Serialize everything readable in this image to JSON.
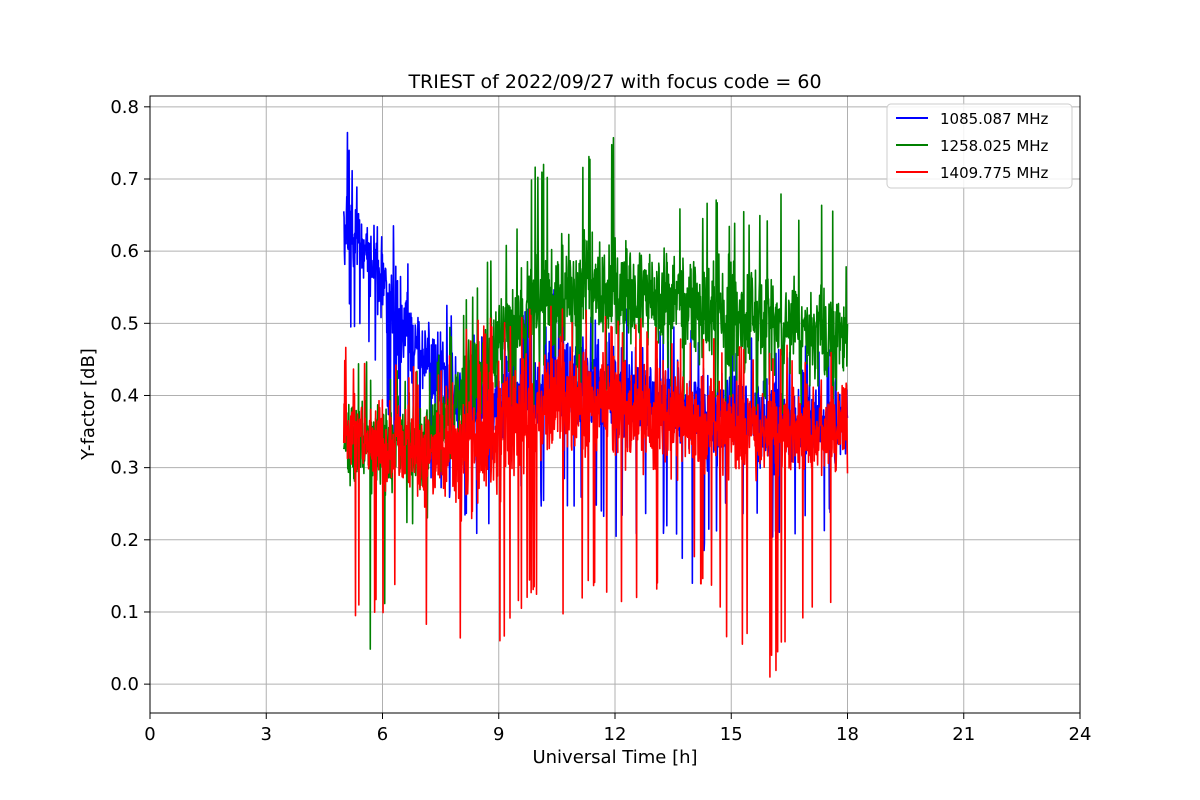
{
  "chart_data": {
    "type": "line",
    "title": "TRIEST of 2022/09/27 with focus code = 60",
    "xlabel": "Universal Time [h]",
    "ylabel": "Y-factor [dB]",
    "xlim": [
      0,
      24
    ],
    "ylim": [
      -0.04,
      0.815
    ],
    "xticks": [
      0,
      3,
      6,
      9,
      12,
      15,
      18,
      21,
      24
    ],
    "yticks": [
      0.0,
      0.1,
      0.2,
      0.3,
      0.4,
      0.5,
      0.6,
      0.7,
      0.8
    ],
    "xtick_labels": [
      "0",
      "3",
      "6",
      "9",
      "12",
      "15",
      "18",
      "21",
      "24"
    ],
    "ytick_labels": [
      "0.0",
      "0.1",
      "0.2",
      "0.3",
      "0.4",
      "0.5",
      "0.6",
      "0.7",
      "0.8"
    ],
    "grid": true,
    "legend_position": "top-right",
    "series": [
      {
        "name": "1085.087 MHz",
        "color": "#0000ff",
        "x": [
          5.0,
          5.1,
          5.3,
          5.6,
          6.0,
          6.5,
          7.0,
          7.5,
          8.0,
          8.5,
          9.0,
          9.5,
          10.0,
          10.5,
          11.0,
          11.5,
          12.0,
          12.5,
          13.0,
          13.5,
          14.0,
          14.5,
          15.0,
          15.5,
          16.0,
          16.5,
          17.0,
          17.5,
          18.0
        ],
        "y_mean": [
          0.62,
          0.64,
          0.62,
          0.6,
          0.56,
          0.5,
          0.46,
          0.43,
          0.4,
          0.38,
          0.38,
          0.4,
          0.41,
          0.42,
          0.42,
          0.41,
          0.41,
          0.4,
          0.39,
          0.39,
          0.38,
          0.37,
          0.37,
          0.37,
          0.36,
          0.36,
          0.36,
          0.36,
          0.36
        ],
        "y_max": [
          0.72,
          0.77,
          0.72,
          0.7,
          0.66,
          0.64,
          0.55,
          0.55,
          0.5,
          0.5,
          0.5,
          0.52,
          0.53,
          0.55,
          0.55,
          0.53,
          0.53,
          0.52,
          0.51,
          0.5,
          0.5,
          0.49,
          0.48,
          0.48,
          0.49,
          0.47,
          0.48,
          0.47,
          0.47
        ],
        "y_min": [
          0.47,
          0.5,
          0.48,
          0.45,
          0.38,
          0.3,
          0.28,
          0.25,
          0.22,
          0.2,
          0.22,
          0.24,
          0.24,
          0.25,
          0.24,
          0.22,
          0.2,
          0.2,
          0.2,
          0.2,
          0.11,
          0.19,
          0.22,
          0.2,
          0.2,
          0.2,
          0.21,
          0.21,
          0.22
        ]
      },
      {
        "name": "1258.025 MHz",
        "color": "#008000",
        "x": [
          5.0,
          5.5,
          6.0,
          6.5,
          7.0,
          7.5,
          8.0,
          8.5,
          9.0,
          9.5,
          10.0,
          10.5,
          11.0,
          11.5,
          12.0,
          12.5,
          13.0,
          13.5,
          14.0,
          14.5,
          15.0,
          15.5,
          16.0,
          16.5,
          17.0,
          17.5,
          18.0
        ],
        "y_mean": [
          0.34,
          0.33,
          0.33,
          0.33,
          0.33,
          0.36,
          0.4,
          0.43,
          0.48,
          0.5,
          0.52,
          0.54,
          0.55,
          0.55,
          0.55,
          0.54,
          0.54,
          0.53,
          0.52,
          0.52,
          0.51,
          0.5,
          0.5,
          0.49,
          0.49,
          0.48,
          0.48
        ],
        "y_max": [
          0.46,
          0.45,
          0.44,
          0.44,
          0.44,
          0.48,
          0.52,
          0.56,
          0.62,
          0.66,
          0.73,
          0.71,
          0.74,
          0.75,
          0.78,
          0.7,
          0.74,
          0.69,
          0.66,
          0.68,
          0.65,
          0.66,
          0.67,
          0.69,
          0.65,
          0.69,
          0.59
        ],
        "y_min": [
          0.16,
          0.0,
          0.08,
          0.2,
          0.22,
          0.25,
          0.3,
          0.32,
          0.35,
          0.38,
          0.38,
          0.4,
          0.4,
          0.4,
          0.4,
          0.4,
          0.4,
          0.4,
          0.38,
          0.38,
          0.38,
          0.37,
          0.37,
          0.37,
          0.37,
          0.36,
          0.36
        ]
      },
      {
        "name": "1409.775 MHz",
        "color": "#ff0000",
        "x": [
          5.0,
          5.5,
          6.0,
          6.5,
          7.0,
          7.5,
          8.0,
          8.5,
          9.0,
          9.5,
          10.0,
          10.5,
          11.0,
          11.5,
          12.0,
          12.5,
          13.0,
          13.5,
          14.0,
          14.5,
          15.0,
          15.5,
          16.0,
          16.5,
          17.0,
          17.5,
          18.0
        ],
        "y_mean": [
          0.35,
          0.34,
          0.33,
          0.33,
          0.32,
          0.32,
          0.33,
          0.33,
          0.35,
          0.37,
          0.38,
          0.39,
          0.39,
          0.39,
          0.38,
          0.38,
          0.37,
          0.37,
          0.36,
          0.36,
          0.35,
          0.35,
          0.35,
          0.35,
          0.35,
          0.35,
          0.35
        ],
        "y_max": [
          0.47,
          0.46,
          0.45,
          0.45,
          0.44,
          0.45,
          0.48,
          0.52,
          0.5,
          0.52,
          0.53,
          0.54,
          0.52,
          0.53,
          0.52,
          0.51,
          0.5,
          0.5,
          0.49,
          0.49,
          0.48,
          0.47,
          0.47,
          0.47,
          0.47,
          0.46,
          0.46
        ],
        "y_min": [
          0.12,
          0.06,
          0.09,
          0.15,
          0.1,
          0.02,
          0.06,
          0.0,
          0.05,
          0.1,
          0.12,
          0.07,
          0.12,
          0.1,
          0.11,
          0.08,
          0.12,
          0.13,
          0.14,
          0.12,
          0.02,
          0.08,
          0.0,
          0.06,
          0.07,
          0.08,
          0.17
        ]
      }
    ]
  }
}
